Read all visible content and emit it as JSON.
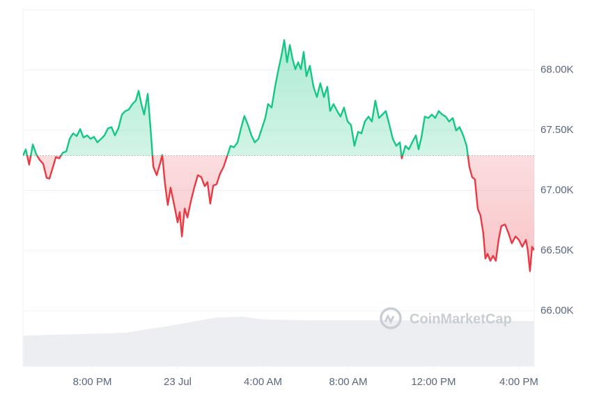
{
  "chart_data": {
    "type": "line",
    "x": [
      -7.25,
      -7.12,
      -6.96,
      -6.79,
      -6.63,
      -6.47,
      -6.3,
      -6.14,
      -6.01,
      -5.84,
      -5.71,
      -5.55,
      -5.39,
      -5.22,
      -5.06,
      -4.9,
      -4.73,
      -4.57,
      -4.41,
      -4.24,
      -4.08,
      -3.92,
      -3.76,
      -3.59,
      -3.43,
      -3.27,
      -3.1,
      -2.94,
      -2.78,
      -2.61,
      -2.45,
      -2.29,
      -2.12,
      -1.96,
      -1.83,
      -1.7,
      -1.57,
      -1.4,
      -1.27,
      -1.14,
      -0.98,
      -0.82,
      -0.72,
      -0.59,
      -0.46,
      -0.33,
      -0.16,
      0,
      0.1,
      0.2,
      0.33,
      0.46,
      0.62,
      0.78,
      0.95,
      1.11,
      1.27,
      1.4,
      1.53,
      1.67,
      1.83,
      1.99,
      2.16,
      2.32,
      2.48,
      2.64,
      2.81,
      2.97,
      3.13,
      3.3,
      3.46,
      3.62,
      3.79,
      3.95,
      4.11,
      4.24,
      4.41,
      4.57,
      4.73,
      4.87,
      5.0,
      5.13,
      5.26,
      5.39,
      5.52,
      5.65,
      5.78,
      5.91,
      6.04,
      6.2,
      6.37,
      6.53,
      6.69,
      6.86,
      7.02,
      7.15,
      7.31,
      7.48,
      7.64,
      7.8,
      7.97,
      8.13,
      8.29,
      8.46,
      8.62,
      8.78,
      8.95,
      9.11,
      9.27,
      9.44,
      9.6,
      9.76,
      9.93,
      10.09,
      10.25,
      10.42,
      10.51,
      10.68,
      10.84,
      11.0,
      11.17,
      11.3,
      11.43,
      11.59,
      11.76,
      11.92,
      12.08,
      12.24,
      12.41,
      12.57,
      12.73,
      12.9,
      13.06,
      13.22,
      13.39,
      13.55,
      13.68,
      13.81,
      13.94,
      14.07,
      14.2,
      14.33,
      14.43,
      14.53,
      14.66,
      14.79,
      14.92,
      15.05,
      15.18,
      15.35,
      15.51,
      15.67,
      15.84,
      16.0,
      16.16,
      16.33,
      16.42,
      16.52,
      16.62,
      16.72
    ],
    "values": [
      67.289,
      67.341,
      67.214,
      67.382,
      67.301,
      67.254,
      67.22,
      67.104,
      67.098,
      67.197,
      67.277,
      67.266,
      67.312,
      67.324,
      67.428,
      67.474,
      67.451,
      67.509,
      67.439,
      67.457,
      67.428,
      67.445,
      67.399,
      67.428,
      67.457,
      67.514,
      67.526,
      67.457,
      67.514,
      67.63,
      67.659,
      67.671,
      67.717,
      67.746,
      67.827,
      67.717,
      67.63,
      67.803,
      67.514,
      67.197,
      67.127,
      67.225,
      67.295,
      67.052,
      66.879,
      67.023,
      66.879,
      66.734,
      66.821,
      66.618,
      66.85,
      66.775,
      66.908,
      67.023,
      67.127,
      67.11,
      67.035,
      67.069,
      66.89,
      67.04,
      67.052,
      67.139,
      67.197,
      67.283,
      67.37,
      67.358,
      67.399,
      67.514,
      67.618,
      67.543,
      67.457,
      67.399,
      67.428,
      67.514,
      67.601,
      67.717,
      67.688,
      67.861,
      68.006,
      68.121,
      68.249,
      68.064,
      68.208,
      68.092,
      68.006,
      68.064,
      68.006,
      68.15,
      67.948,
      68.035,
      67.861,
      67.775,
      67.89,
      67.775,
      67.861,
      67.659,
      67.717,
      67.659,
      67.613,
      67.688,
      67.572,
      67.543,
      67.37,
      67.486,
      67.474,
      67.572,
      67.613,
      67.572,
      67.746,
      67.601,
      67.63,
      67.659,
      67.543,
      67.428,
      67.37,
      67.399,
      67.266,
      67.37,
      67.341,
      67.399,
      67.457,
      67.341,
      67.439,
      67.613,
      67.601,
      67.63,
      67.601,
      67.659,
      67.63,
      67.613,
      67.572,
      67.601,
      67.497,
      67.526,
      67.457,
      67.37,
      67.197,
      67.11,
      67.092,
      66.85,
      66.792,
      66.647,
      66.434,
      66.474,
      66.416,
      66.457,
      66.416,
      66.59,
      66.705,
      66.717,
      66.647,
      66.561,
      66.618,
      66.59,
      66.532,
      66.59,
      66.503,
      66.329,
      66.532,
      66.503
    ],
    "up_color": "#16c784",
    "down_color": "#ea3943",
    "xlim": [
      -7.25,
      16.72
    ],
    "xticks": [
      {
        "value": -4,
        "label": "8:00 PM"
      },
      {
        "value": 0,
        "label": "23 Jul"
      },
      {
        "value": 4,
        "label": "4:00 AM"
      },
      {
        "value": 8,
        "label": "8:00 AM"
      },
      {
        "value": 12,
        "label": "12:00 PM"
      },
      {
        "value": 16,
        "label": "4:00 PM"
      }
    ],
    "ylim": [
      65.54,
      68.5
    ],
    "yticks": [
      {
        "value": 66,
        "label": "66.00K"
      },
      {
        "value": 66.5,
        "label": "66.50K"
      },
      {
        "value": 67,
        "label": "67.00K"
      },
      {
        "value": 67.5,
        "label": "67.50K"
      },
      {
        "value": 68,
        "label": "68.00K"
      }
    ],
    "grid": true,
    "watermark": "CoinMarketCap"
  }
}
